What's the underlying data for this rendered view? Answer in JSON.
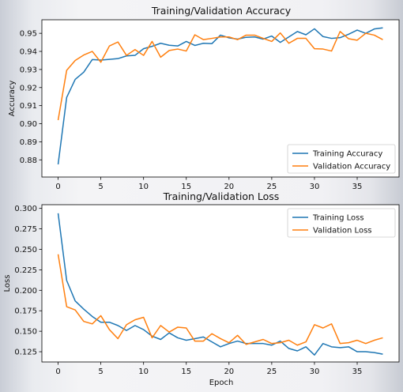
{
  "chart_data": [
    {
      "type": "line",
      "title": "Training/Validation Accuracy",
      "xlabel": "",
      "ylabel": "Accuracy",
      "xlim": [
        -1.9,
        39.9
      ],
      "ylim": [
        0.8705,
        0.9575
      ],
      "xticks": [
        0,
        5,
        10,
        15,
        20,
        25,
        30,
        35
      ],
      "xtick_labels": [
        "0",
        "5",
        "10",
        "15",
        "20",
        "25",
        "30",
        "35"
      ],
      "yticks": [
        0.88,
        0.89,
        0.9,
        0.91,
        0.92,
        0.93,
        0.94,
        0.95
      ],
      "ytick_labels": [
        "0.88",
        "0.89",
        "0.90",
        "0.91",
        "0.92",
        "0.93",
        "0.94",
        "0.95"
      ],
      "legend_position": "lower-right",
      "grid": false,
      "x": [
        0,
        1,
        2,
        3,
        4,
        5,
        6,
        7,
        8,
        9,
        10,
        11,
        12,
        13,
        14,
        15,
        16,
        17,
        18,
        19,
        20,
        21,
        22,
        23,
        24,
        25,
        26,
        27,
        28,
        29,
        30,
        31,
        32,
        33,
        34,
        35,
        36,
        37,
        38
      ],
      "series": [
        {
          "name": "Training Accuracy",
          "color": "#1f77b4",
          "values": [
            0.8775,
            0.9145,
            0.9245,
            0.9285,
            0.9355,
            0.9352,
            0.9356,
            0.936,
            0.9375,
            0.9378,
            0.9415,
            0.9428,
            0.9445,
            0.9434,
            0.943,
            0.9455,
            0.9433,
            0.9445,
            0.9443,
            0.949,
            0.9475,
            0.9468,
            0.9478,
            0.948,
            0.9468,
            0.9485,
            0.945,
            0.948,
            0.951,
            0.9492,
            0.9525,
            0.9482,
            0.9472,
            0.9476,
            0.9495,
            0.9518,
            0.95,
            0.9524,
            0.953
          ]
        },
        {
          "name": "Validation Accuracy",
          "color": "#ff7f0e",
          "values": [
            0.902,
            0.9295,
            0.935,
            0.938,
            0.94,
            0.934,
            0.943,
            0.9452,
            0.9378,
            0.941,
            0.9378,
            0.9455,
            0.9368,
            0.9405,
            0.9413,
            0.9402,
            0.9492,
            0.9465,
            0.9472,
            0.948,
            0.948,
            0.9465,
            0.949,
            0.949,
            0.9472,
            0.9455,
            0.9502,
            0.9445,
            0.9472,
            0.9472,
            0.9415,
            0.9413,
            0.9402,
            0.951,
            0.947,
            0.9462,
            0.95,
            0.949,
            0.9465
          ]
        }
      ]
    },
    {
      "type": "line",
      "title": "Training/Validation Loss",
      "xlabel": "Epoch",
      "ylabel": "Loss",
      "xlim": [
        -1.9,
        39.9
      ],
      "ylim": [
        0.1125,
        0.3045
      ],
      "xticks": [
        0,
        5,
        10,
        15,
        20,
        25,
        30,
        35
      ],
      "xtick_labels": [
        "0",
        "5",
        "10",
        "15",
        "20",
        "25",
        "30",
        "35"
      ],
      "yticks": [
        0.125,
        0.15,
        0.175,
        0.2,
        0.225,
        0.25,
        0.275,
        0.3
      ],
      "ytick_labels": [
        "0.125",
        "0.150",
        "0.175",
        "0.200",
        "0.225",
        "0.250",
        "0.275",
        "0.300"
      ],
      "legend_position": "upper-right",
      "grid": false,
      "x": [
        0,
        1,
        2,
        3,
        4,
        5,
        6,
        7,
        8,
        9,
        10,
        11,
        12,
        13,
        14,
        15,
        16,
        17,
        18,
        19,
        20,
        21,
        22,
        23,
        24,
        25,
        26,
        27,
        28,
        29,
        30,
        31,
        32,
        33,
        34,
        35,
        36,
        37,
        38
      ],
      "series": [
        {
          "name": "Training Loss",
          "color": "#1f77b4",
          "values": [
            0.294,
            0.212,
            0.187,
            0.177,
            0.168,
            0.161,
            0.161,
            0.157,
            0.151,
            0.157,
            0.152,
            0.144,
            0.14,
            0.148,
            0.142,
            0.139,
            0.141,
            0.143,
            0.137,
            0.131,
            0.135,
            0.138,
            0.135,
            0.135,
            0.135,
            0.133,
            0.138,
            0.129,
            0.126,
            0.131,
            0.121,
            0.135,
            0.131,
            0.13,
            0.131,
            0.125,
            0.125,
            0.124,
            0.122
          ]
        },
        {
          "name": "Validation Loss",
          "color": "#ff7f0e",
          "values": [
            0.244,
            0.18,
            0.176,
            0.162,
            0.159,
            0.169,
            0.152,
            0.141,
            0.158,
            0.164,
            0.167,
            0.142,
            0.157,
            0.149,
            0.155,
            0.154,
            0.138,
            0.138,
            0.147,
            0.141,
            0.136,
            0.145,
            0.134,
            0.137,
            0.14,
            0.135,
            0.136,
            0.139,
            0.133,
            0.137,
            0.158,
            0.154,
            0.159,
            0.135,
            0.136,
            0.139,
            0.135,
            0.139,
            0.142
          ]
        }
      ]
    }
  ]
}
